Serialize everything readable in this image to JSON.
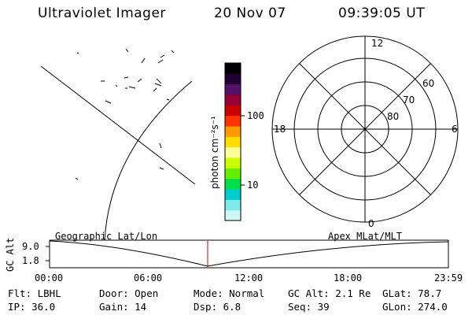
{
  "header": {
    "title": "Ultraviolet Imager",
    "date": "20 Nov 07",
    "time": "09:39:05 UT"
  },
  "colorbar": {
    "unit_label": "photon cm⁻²s⁻¹",
    "tick_100": "100",
    "tick_10": "10",
    "colors": [
      "#ccf5f5",
      "#7fe8e8",
      "#00cccc",
      "#00e04a",
      "#66ee00",
      "#ccff00",
      "#ffff99",
      "#ffdd00",
      "#ff9900",
      "#ff3300",
      "#cc0000",
      "#990033",
      "#551166",
      "#220033",
      "#000000"
    ]
  },
  "polar": {
    "label_12": "12",
    "label_18": "18",
    "label_6": "6",
    "label_0": "0",
    "label_60": "60",
    "label_70": "70",
    "label_80": "80"
  },
  "timeline": {
    "axis_title": "GC Alt",
    "tick_hi": "9.0",
    "tick_lo": "1.8",
    "left_caption": "Geographic Lat/Lon",
    "right_caption": "Apex MLat/MLT",
    "times": [
      "00:00",
      "06:00",
      "12:00",
      "18:00",
      "23:59"
    ]
  },
  "status": {
    "row1": {
      "flt": "Flt: LBHL",
      "door": "Door: Open",
      "mode": "Mode: Normal",
      "gcalt": "GC Alt: 2.1 Re",
      "glat": "GLat:  78.7"
    },
    "row2": {
      "ip": "IP: 36.0",
      "gain": "Gain: 14",
      "dsp": "Dsp:    6.8",
      "seq": "Seq: 39",
      "glon": "GLon: 274.0"
    }
  }
}
